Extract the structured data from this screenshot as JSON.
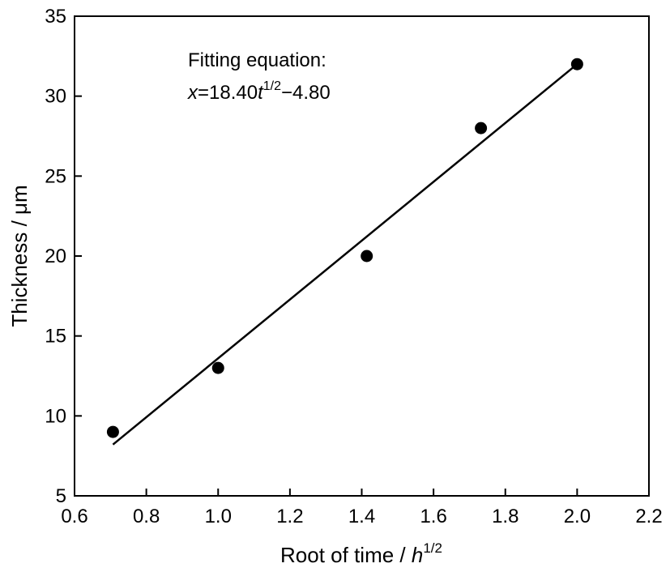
{
  "chart_data": {
    "type": "scatter",
    "xlabel": {
      "main": "Root of time / ",
      "var": "h",
      "sup": "1/2"
    },
    "ylabel": "Thickness / μm",
    "xlim": [
      0.6,
      2.2
    ],
    "ylim": [
      5,
      35
    ],
    "xticks": [
      0.6,
      0.8,
      1.0,
      1.2,
      1.4,
      1.6,
      1.8,
      2.0,
      2.2
    ],
    "xtick_labels": [
      "0.6",
      "0.8",
      "1.0",
      "1.2",
      "1.4",
      "1.6",
      "1.8",
      "2.0",
      "2.2"
    ],
    "yticks": [
      5,
      10,
      15,
      20,
      25,
      30,
      35
    ],
    "ytick_labels": [
      "5",
      "10",
      "15",
      "20",
      "25",
      "30",
      "35"
    ],
    "grid": false,
    "points": [
      {
        "x": 0.707,
        "y": 9.0
      },
      {
        "x": 1.0,
        "y": 13.0
      },
      {
        "x": 1.414,
        "y": 20.0
      },
      {
        "x": 1.732,
        "y": 28.0
      },
      {
        "x": 2.0,
        "y": 32.0
      }
    ],
    "fit_line": {
      "slope": 18.4,
      "intercept": -4.8,
      "x_range": [
        0.707,
        2.0
      ]
    },
    "annotation": {
      "line1": "Fitting equation:",
      "eq_var": "x",
      "eq_mid": "=18.40",
      "eq_var2": "t",
      "eq_sup": "1/2",
      "eq_end": "−4.80"
    }
  }
}
